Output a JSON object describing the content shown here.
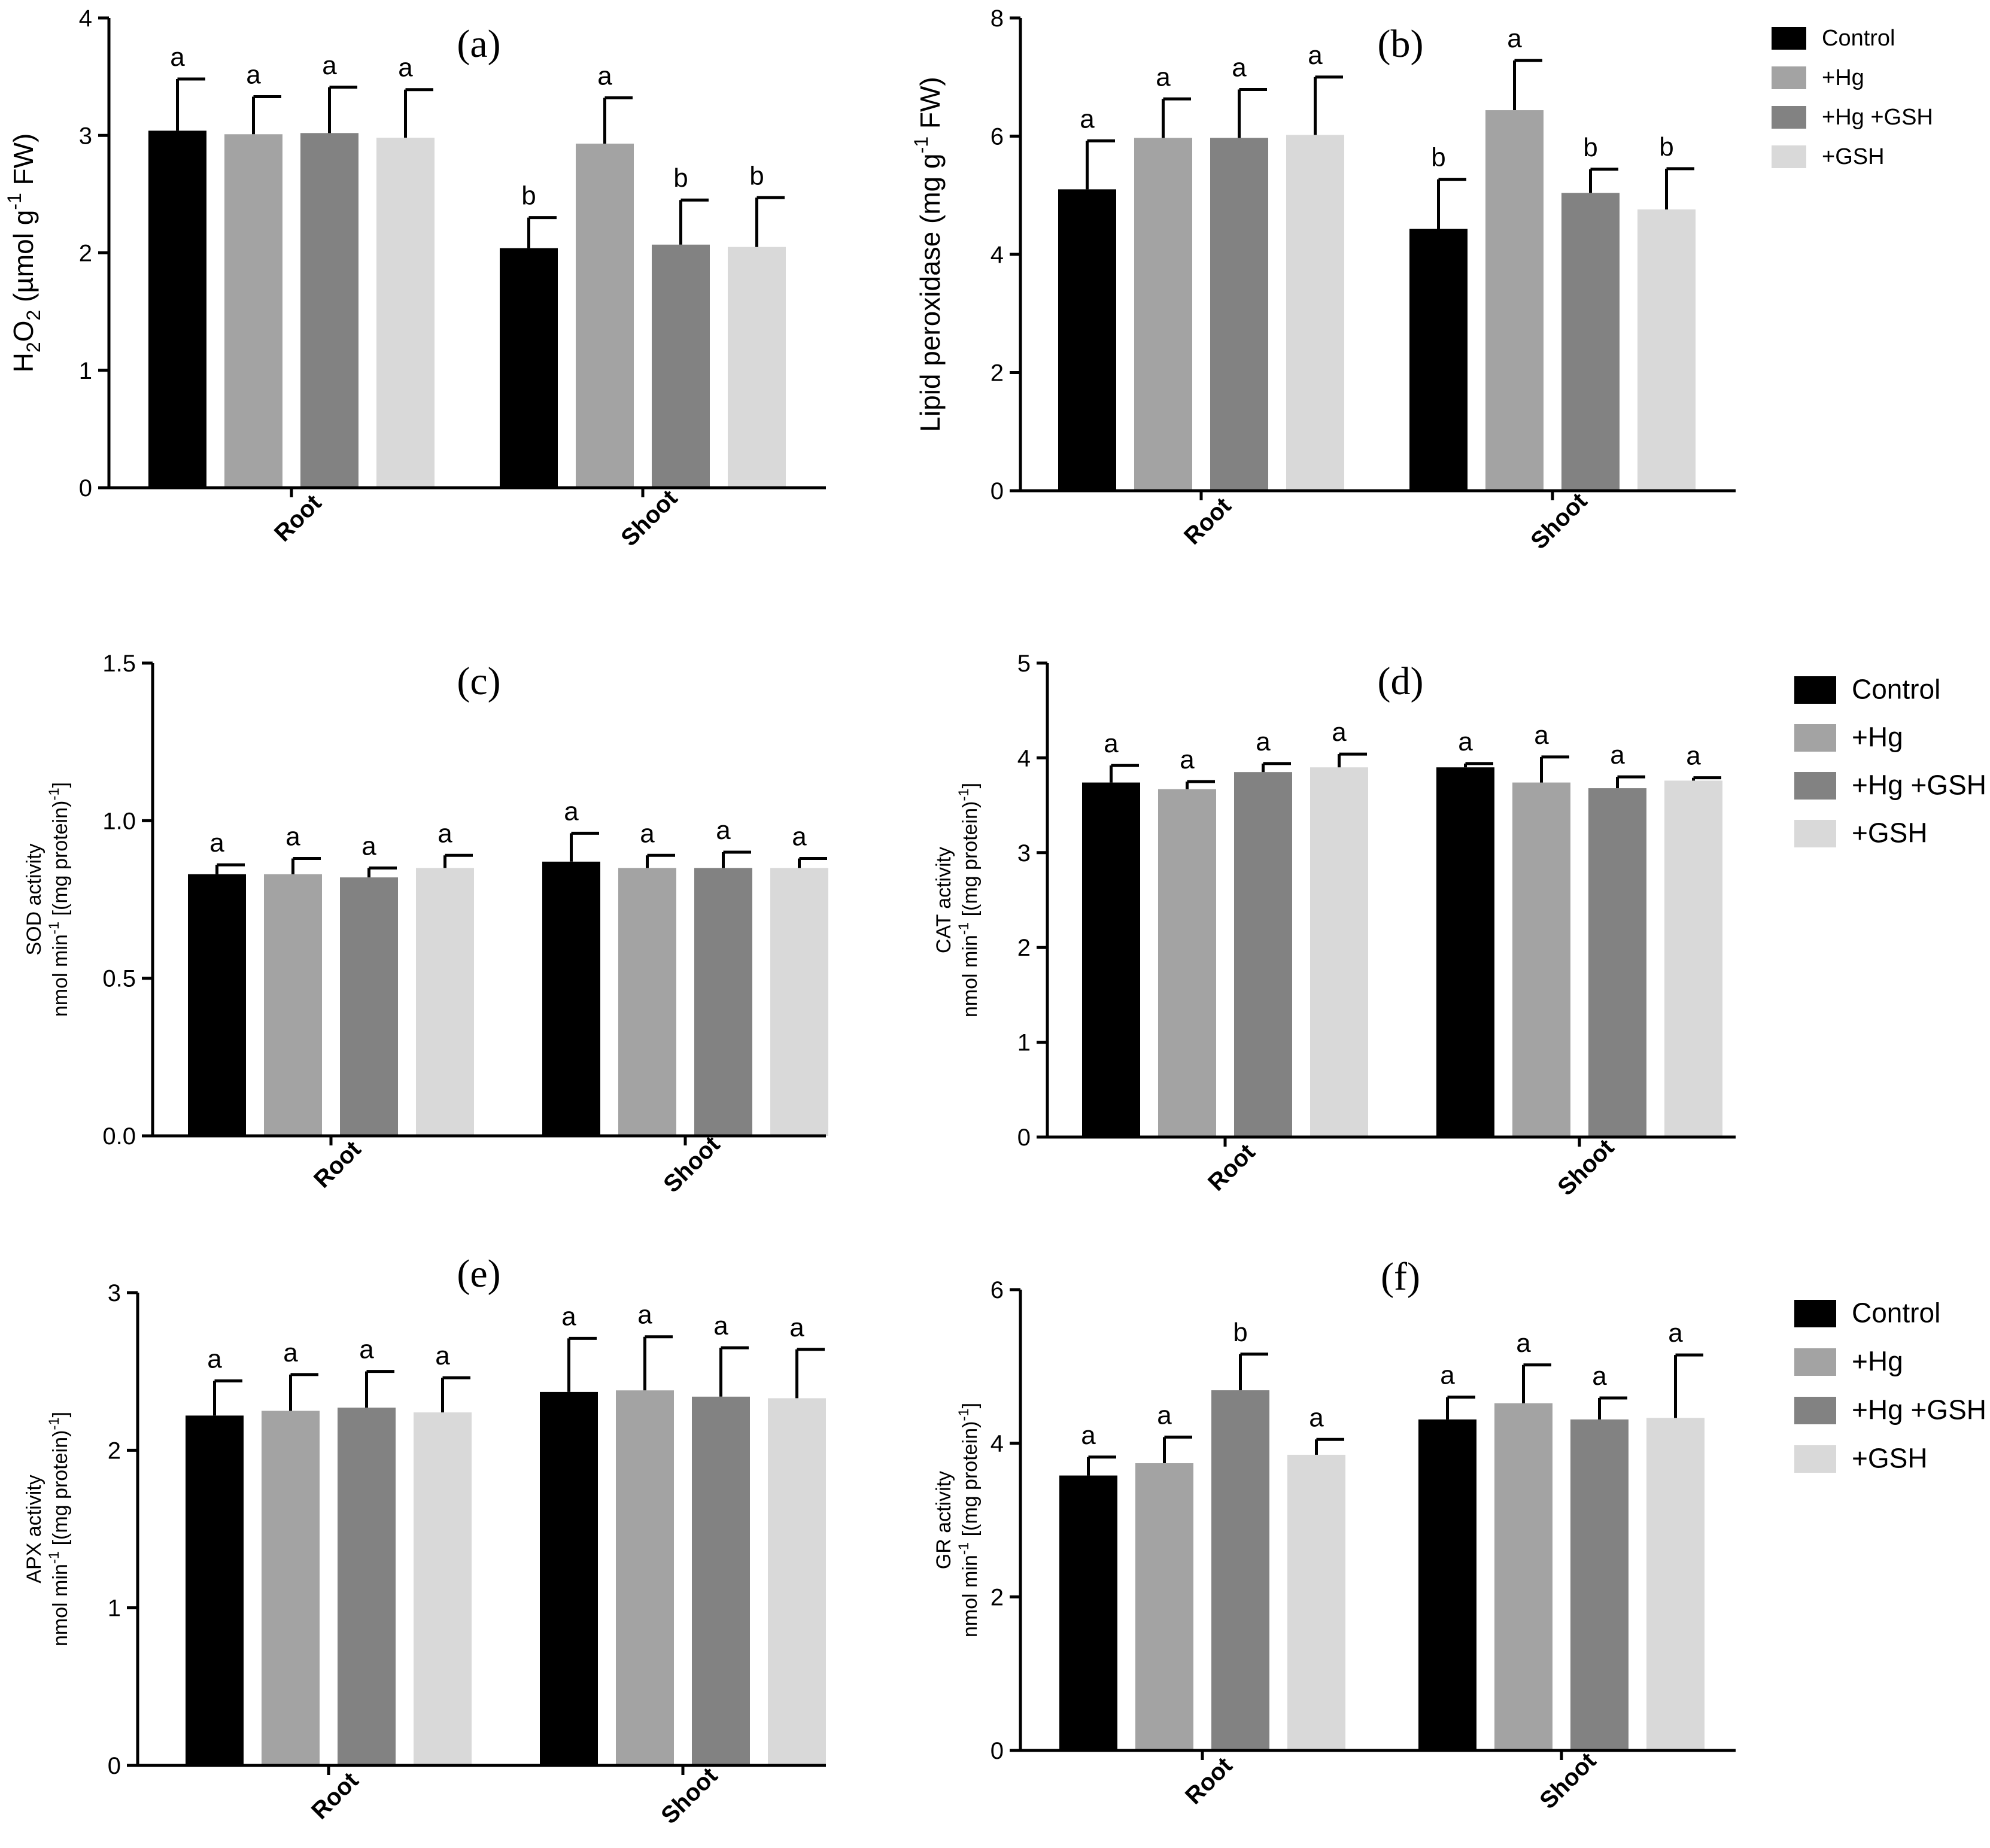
{
  "colors": {
    "Control": "#000000",
    "+Hg": "#a3a3a3",
    "+Hg +GSH": "#828282",
    "+GSH": "#d9d9d9"
  },
  "chart_data": [
    {
      "type": "bar",
      "panel": "(a)",
      "ylabel": {
        "line1": "H2O2 (µmol g-1 FW)",
        "pre": "H",
        "s1": "2",
        "mid": "O",
        "s2": "2",
        "post": " (µmol g",
        "sup": "-1",
        "end": " FW)"
      },
      "ylim": [
        0,
        4
      ],
      "yticks": [
        0,
        1,
        2,
        3,
        4
      ],
      "categories": [
        "Root",
        "Shoot"
      ],
      "series": [
        {
          "name": "Control",
          "values": [
            3.04,
            2.04
          ],
          "errors": [
            0.44,
            0.26
          ],
          "letters": [
            "a",
            "b"
          ]
        },
        {
          "name": "+Hg",
          "values": [
            3.01,
            2.93
          ],
          "errors": [
            0.32,
            0.39
          ],
          "letters": [
            "a",
            "a"
          ]
        },
        {
          "name": "+Hg +GSH",
          "values": [
            3.02,
            2.07
          ],
          "errors": [
            0.39,
            0.38
          ],
          "letters": [
            "a",
            "b"
          ]
        },
        {
          "name": "+GSH",
          "values": [
            2.98,
            2.05
          ],
          "errors": [
            0.41,
            0.42
          ],
          "letters": [
            "a",
            "b"
          ]
        }
      ]
    },
    {
      "type": "bar",
      "panel": "(b)",
      "ylabel": {
        "pre": "Lipid peroxidase (mg g",
        "sup": "-1",
        "end": "  FW)"
      },
      "ylim": [
        0,
        8
      ],
      "yticks": [
        0,
        2,
        4,
        6,
        8
      ],
      "categories": [
        "Root",
        "Shoot"
      ],
      "series": [
        {
          "name": "Control",
          "values": [
            5.1,
            4.43
          ],
          "errors": [
            0.82,
            0.84
          ],
          "letters": [
            "a",
            "b"
          ]
        },
        {
          "name": "+Hg",
          "values": [
            5.97,
            6.44
          ],
          "errors": [
            0.66,
            0.84
          ],
          "letters": [
            "a",
            "a"
          ]
        },
        {
          "name": "+Hg +GSH",
          "values": [
            5.97,
            5.04
          ],
          "errors": [
            0.82,
            0.4
          ],
          "letters": [
            "a",
            "b"
          ]
        },
        {
          "name": "+GSH",
          "values": [
            6.02,
            4.76
          ],
          "errors": [
            0.98,
            0.69
          ],
          "letters": [
            "a",
            "b"
          ]
        }
      ]
    },
    {
      "type": "bar",
      "panel": "(c)",
      "ylabel": {
        "line1": "SOD activity",
        "pre": "nmol min",
        "sup": "-1",
        "end": " [(mg protein)",
        "sup2": "-1",
        "end2": "]"
      },
      "ylim": [
        0,
        1.5
      ],
      "yticks": [
        "0.0",
        "0.5",
        "1.0",
        "1.5"
      ],
      "categories": [
        "Root",
        "Shoot"
      ],
      "series": [
        {
          "name": "Control",
          "values": [
            0.83,
            0.87
          ],
          "errors": [
            0.03,
            0.09
          ],
          "letters": [
            "a",
            "a"
          ]
        },
        {
          "name": "+Hg",
          "values": [
            0.83,
            0.85
          ],
          "errors": [
            0.05,
            0.04
          ],
          "letters": [
            "a",
            "a"
          ]
        },
        {
          "name": "+Hg +GSH",
          "values": [
            0.82,
            0.85
          ],
          "errors": [
            0.03,
            0.05
          ],
          "letters": [
            "a",
            "a"
          ]
        },
        {
          "name": "+GSH",
          "values": [
            0.85,
            0.85
          ],
          "errors": [
            0.04,
            0.03
          ],
          "letters": [
            "a",
            "a"
          ]
        }
      ]
    },
    {
      "type": "bar",
      "panel": "(d)",
      "ylabel": {
        "line1": "CAT activity",
        "pre": "nmol min",
        "sup": "-1",
        "end": " [(mg protein)",
        "sup2": "-1",
        "end2": "]"
      },
      "ylim": [
        0,
        5
      ],
      "yticks": [
        0,
        1,
        2,
        3,
        4,
        5
      ],
      "categories": [
        "Root",
        "Shoot"
      ],
      "series": [
        {
          "name": "Control",
          "values": [
            3.74,
            3.9
          ],
          "errors": [
            0.18,
            0.04
          ],
          "letters": [
            "a",
            "a"
          ]
        },
        {
          "name": "+Hg",
          "values": [
            3.67,
            3.74
          ],
          "errors": [
            0.08,
            0.27
          ],
          "letters": [
            "a",
            "a"
          ]
        },
        {
          "name": "+Hg +GSH",
          "values": [
            3.85,
            3.68
          ],
          "errors": [
            0.09,
            0.12
          ],
          "letters": [
            "a",
            "a"
          ]
        },
        {
          "name": "+GSH",
          "values": [
            3.9,
            3.76
          ],
          "errors": [
            0.14,
            0.03
          ],
          "letters": [
            "a",
            "a"
          ]
        }
      ]
    },
    {
      "type": "bar",
      "panel": "(e)",
      "ylabel": {
        "line1": "APX activity",
        "pre": "nmol min",
        "sup": "-1",
        "end": " [(mg protein)",
        "sup2": "-1",
        "end2": "]"
      },
      "ylim": [
        0,
        3
      ],
      "yticks": [
        0,
        1,
        2,
        3
      ],
      "categories": [
        "Root",
        "Shoot"
      ],
      "series": [
        {
          "name": "Control",
          "values": [
            2.22,
            2.37
          ],
          "errors": [
            0.22,
            0.34
          ],
          "letters": [
            "a",
            "a"
          ]
        },
        {
          "name": "+Hg",
          "values": [
            2.25,
            2.38
          ],
          "errors": [
            0.23,
            0.34
          ],
          "letters": [
            "a",
            "a"
          ]
        },
        {
          "name": "+Hg +GSH",
          "values": [
            2.27,
            2.34
          ],
          "errors": [
            0.23,
            0.31
          ],
          "letters": [
            "a",
            "a"
          ]
        },
        {
          "name": "+GSH",
          "values": [
            2.24,
            2.33
          ],
          "errors": [
            0.22,
            0.31
          ],
          "letters": [
            "a",
            "a"
          ]
        }
      ]
    },
    {
      "type": "bar",
      "panel": "(f)",
      "ylabel": {
        "line1": "GR activity",
        "pre": "nmol min",
        "sup": "-1",
        "end": " [(mg protein)",
        "sup2": "-1",
        "end2": "]"
      },
      "ylim": [
        0,
        6
      ],
      "yticks": [
        0,
        2,
        4,
        6
      ],
      "categories": [
        "Root",
        "Shoot"
      ],
      "series": [
        {
          "name": "Control",
          "values": [
            3.58,
            4.31
          ],
          "errors": [
            0.24,
            0.29
          ],
          "letters": [
            "a",
            "a"
          ]
        },
        {
          "name": "+Hg",
          "values": [
            3.74,
            4.52
          ],
          "errors": [
            0.34,
            0.5
          ],
          "letters": [
            "a",
            "a"
          ]
        },
        {
          "name": "+Hg +GSH",
          "values": [
            4.69,
            4.31
          ],
          "errors": [
            0.47,
            0.28
          ],
          "letters": [
            "b",
            "a"
          ]
        },
        {
          "name": "+GSH",
          "values": [
            3.85,
            4.33
          ],
          "errors": [
            0.2,
            0.82
          ],
          "letters": [
            "a",
            "a"
          ]
        }
      ]
    }
  ],
  "legends": [
    {
      "entries": [
        "Control",
        "+Hg",
        "+Hg +GSH",
        "+GSH"
      ]
    },
    {
      "entries": [
        "Control",
        "+Hg",
        "+Hg +GSH",
        "+GSH"
      ]
    },
    {
      "entries": [
        "Control",
        "+Hg",
        "+Hg +GSH",
        "+GSH"
      ]
    }
  ]
}
